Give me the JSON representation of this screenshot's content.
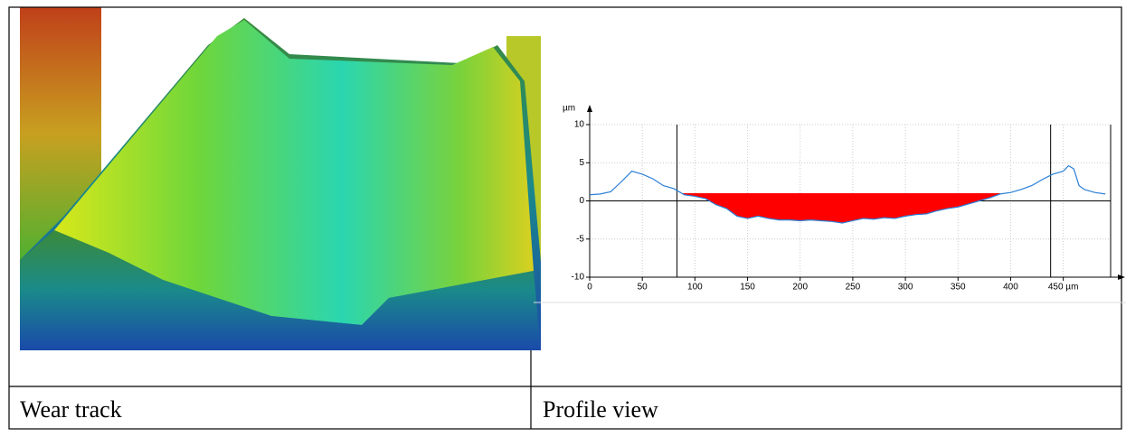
{
  "captions": [
    "Wear track",
    "Profile view"
  ],
  "chart_data": {
    "type": "line",
    "y_label": "µm",
    "x": [
      0,
      10,
      20,
      30,
      40,
      50,
      60,
      70,
      80,
      90,
      100,
      110,
      120,
      130,
      140,
      150,
      160,
      170,
      180,
      190,
      200,
      210,
      220,
      230,
      240,
      250,
      260,
      270,
      280,
      290,
      300,
      310,
      320,
      330,
      340,
      350,
      360,
      370,
      380,
      390,
      400,
      410,
      420,
      430,
      440,
      450,
      455,
      460,
      465,
      470,
      480,
      490
    ],
    "series": [
      {
        "color": "#2a7fd6",
        "values": [
          0.8,
          0.9,
          1.2,
          2.5,
          3.9,
          3.5,
          2.9,
          2.0,
          1.6,
          0.8,
          0.6,
          0.3,
          -0.5,
          -1.0,
          -2.0,
          -2.3,
          -2.0,
          -2.3,
          -2.5,
          -2.5,
          -2.6,
          -2.5,
          -2.6,
          -2.7,
          -2.9,
          -2.6,
          -2.3,
          -2.4,
          -2.2,
          -2.3,
          -2.0,
          -1.8,
          -1.7,
          -1.3,
          -1.0,
          -0.8,
          -0.4,
          0.0,
          0.4,
          0.9,
          1.1,
          1.5,
          2.0,
          2.8,
          3.5,
          3.9,
          4.6,
          4.2,
          2.0,
          1.5,
          1.1,
          0.9
        ]
      }
    ],
    "fill": {
      "from": 88,
      "to": 390,
      "level": 1,
      "color": "#ff0000"
    },
    "cursors": [
      83,
      438
    ],
    "xlim": [
      0,
      495
    ],
    "ylim": [
      -10,
      10
    ],
    "xticks": [
      0,
      50,
      100,
      150,
      200,
      250,
      300,
      350,
      400,
      {
        "value": 450,
        "label": "450 µm"
      }
    ],
    "yticks": [
      -10,
      -5,
      0,
      5,
      10
    ],
    "grid": true
  }
}
